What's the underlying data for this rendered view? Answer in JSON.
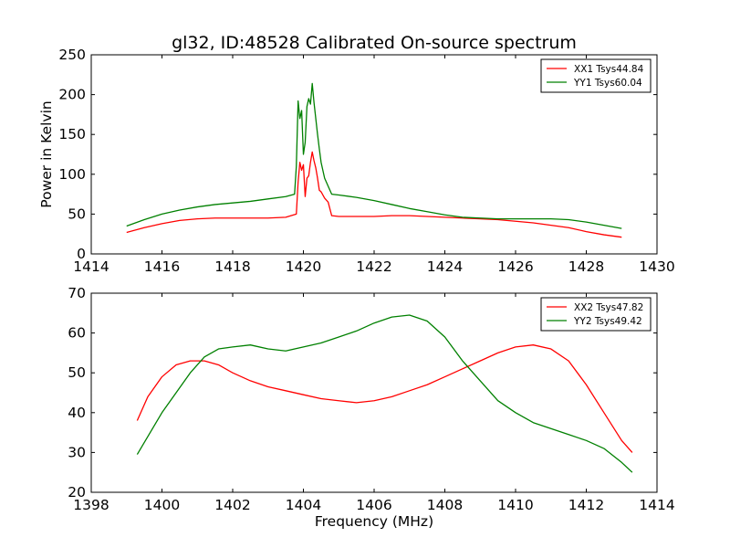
{
  "figure": {
    "title": "gl32, ID:48528 Calibrated On-source spectrum",
    "background": "#ffffff"
  },
  "chart_data": [
    {
      "type": "line",
      "title": "gl32, ID:48528 Calibrated On-source spectrum",
      "xlabel": "",
      "ylabel": "Power in Kelvin",
      "xlim": [
        1414,
        1430
      ],
      "ylim": [
        0,
        250
      ],
      "xticks": [
        "1414",
        "1416",
        "1418",
        "1420",
        "1422",
        "1424",
        "1426",
        "1428",
        "1430"
      ],
      "yticks": [
        "0",
        "50",
        "100",
        "150",
        "200",
        "250"
      ],
      "grid": false,
      "legend_position": "top-right",
      "series": [
        {
          "name": "XX1 Tsys44.84",
          "color": "#ff0000",
          "x": [
            1415.0,
            1415.5,
            1416.0,
            1416.5,
            1417.0,
            1417.5,
            1418.0,
            1418.5,
            1419.0,
            1419.5,
            1419.8,
            1419.85,
            1419.9,
            1419.95,
            1420.0,
            1420.05,
            1420.1,
            1420.15,
            1420.2,
            1420.25,
            1420.3,
            1420.35,
            1420.4,
            1420.45,
            1420.5,
            1420.6,
            1420.7,
            1420.8,
            1421.0,
            1421.5,
            1422.0,
            1422.5,
            1423.0,
            1423.5,
            1424.0,
            1424.5,
            1425.0,
            1425.5,
            1426.0,
            1426.5,
            1427.0,
            1427.5,
            1428.0,
            1428.5,
            1429.0
          ],
          "values": [
            27,
            33,
            38,
            42,
            44,
            45,
            45,
            45,
            45,
            46,
            50,
            90,
            115,
            105,
            112,
            72,
            95,
            98,
            115,
            128,
            117,
            108,
            95,
            80,
            78,
            70,
            65,
            48,
            47,
            47,
            47,
            48,
            48,
            47,
            46,
            45,
            44,
            43,
            41,
            39,
            36,
            33,
            28,
            24,
            21
          ]
        },
        {
          "name": "YY1 Tsys60.04",
          "color": "#008000",
          "x": [
            1415.0,
            1415.5,
            1416.0,
            1416.5,
            1417.0,
            1417.5,
            1418.0,
            1418.5,
            1419.0,
            1419.5,
            1419.75,
            1419.8,
            1419.85,
            1419.9,
            1419.95,
            1420.0,
            1420.05,
            1420.1,
            1420.15,
            1420.2,
            1420.25,
            1420.3,
            1420.35,
            1420.4,
            1420.45,
            1420.5,
            1420.6,
            1420.7,
            1420.8,
            1421.0,
            1421.5,
            1422.0,
            1422.5,
            1423.0,
            1423.5,
            1424.0,
            1424.5,
            1425.0,
            1425.5,
            1426.0,
            1426.5,
            1427.0,
            1427.5,
            1428.0,
            1428.5,
            1429.0
          ],
          "values": [
            35,
            43,
            50,
            55,
            59,
            62,
            64,
            66,
            69,
            72,
            75,
            110,
            192,
            170,
            180,
            125,
            140,
            185,
            195,
            188,
            214,
            190,
            170,
            150,
            132,
            115,
            95,
            85,
            75,
            74,
            71,
            67,
            62,
            57,
            53,
            49,
            46,
            45,
            44,
            44,
            44,
            44,
            43,
            40,
            36,
            32
          ]
        }
      ]
    },
    {
      "type": "line",
      "title": "",
      "xlabel": "Frequency (MHz)",
      "ylabel": "",
      "xlim": [
        1398,
        1414
      ],
      "ylim": [
        20,
        70
      ],
      "xticks": [
        "1398",
        "1400",
        "1402",
        "1404",
        "1406",
        "1408",
        "1410",
        "1412",
        "1414"
      ],
      "yticks": [
        "20",
        "30",
        "40",
        "50",
        "60",
        "70"
      ],
      "grid": false,
      "legend_position": "top-right",
      "series": [
        {
          "name": "XX2 Tsys47.82",
          "color": "#ff0000",
          "x": [
            1399.3,
            1399.6,
            1400.0,
            1400.4,
            1400.8,
            1401.2,
            1401.6,
            1402.0,
            1402.5,
            1403.0,
            1403.5,
            1404.0,
            1404.5,
            1405.0,
            1405.5,
            1406.0,
            1406.5,
            1407.0,
            1407.5,
            1408.0,
            1408.5,
            1409.0,
            1409.5,
            1410.0,
            1410.5,
            1411.0,
            1411.5,
            1412.0,
            1412.5,
            1413.0,
            1413.3
          ],
          "values": [
            38,
            44,
            49,
            52,
            53,
            53,
            52,
            50,
            48,
            46.5,
            45.5,
            44.5,
            43.5,
            43,
            42.5,
            43,
            44,
            45.5,
            47,
            49,
            51,
            53,
            55,
            56.5,
            57,
            56,
            53,
            47,
            40,
            33,
            30
          ]
        },
        {
          "name": "YY2 Tsys49.42",
          "color": "#008000",
          "x": [
            1399.3,
            1399.6,
            1400.0,
            1400.4,
            1400.8,
            1401.2,
            1401.6,
            1402.0,
            1402.5,
            1403.0,
            1403.5,
            1404.0,
            1404.5,
            1405.0,
            1405.5,
            1406.0,
            1406.5,
            1407.0,
            1407.5,
            1408.0,
            1408.5,
            1409.0,
            1409.5,
            1410.0,
            1410.5,
            1411.0,
            1411.5,
            1412.0,
            1412.5,
            1413.0,
            1413.3
          ],
          "values": [
            29.5,
            34,
            40,
            45,
            50,
            54,
            56,
            56.5,
            57,
            56,
            55.5,
            56.5,
            57.5,
            59,
            60.5,
            62.5,
            64,
            64.5,
            63,
            59,
            53,
            48,
            43,
            40,
            37.5,
            36,
            34.5,
            33,
            31,
            27.5,
            25
          ]
        }
      ]
    }
  ]
}
